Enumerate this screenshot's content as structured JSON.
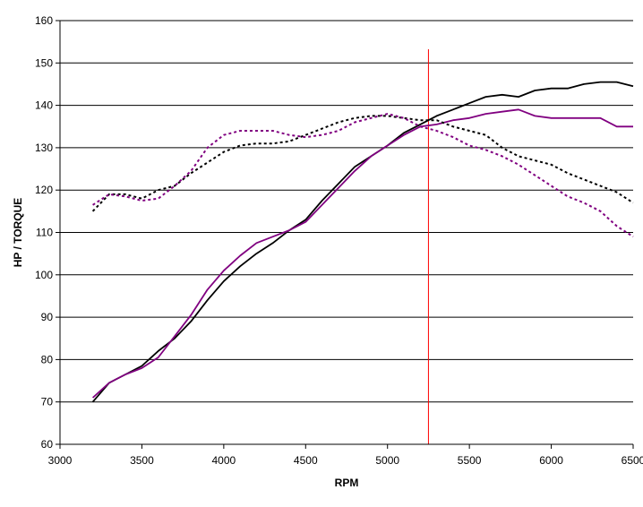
{
  "chart_data": {
    "type": "line",
    "xlabel": "RPM",
    "ylabel": "HP / TORQUE",
    "xlim": [
      3000,
      6500
    ],
    "ylim": [
      60,
      160
    ],
    "xticks": [
      3000,
      3500,
      4000,
      4500,
      5000,
      5500,
      6000,
      6500
    ],
    "yticks": [
      60,
      70,
      80,
      90,
      100,
      110,
      120,
      130,
      140,
      150,
      160
    ],
    "grid": "horizontal",
    "legend": "none",
    "vertical_marker": {
      "x": 5250,
      "color": "#ff0000"
    },
    "series": [
      {
        "color": "#000000",
        "dash": "solid",
        "points": [
          [
            3200,
            70
          ],
          [
            3300,
            74.5
          ],
          [
            3400,
            76.5
          ],
          [
            3500,
            78.5
          ],
          [
            3600,
            82
          ],
          [
            3700,
            85
          ],
          [
            3800,
            89
          ],
          [
            3900,
            94
          ],
          [
            4000,
            98.5
          ],
          [
            4100,
            102
          ],
          [
            4200,
            105
          ],
          [
            4300,
            107.5
          ],
          [
            4400,
            110.5
          ],
          [
            4500,
            113
          ],
          [
            4600,
            117.5
          ],
          [
            4700,
            121.5
          ],
          [
            4800,
            125.5
          ],
          [
            4900,
            128
          ],
          [
            5000,
            130.5
          ],
          [
            5100,
            133.5
          ],
          [
            5200,
            135.5
          ],
          [
            5300,
            137.5
          ],
          [
            5400,
            139
          ],
          [
            5500,
            140.5
          ],
          [
            5600,
            142
          ],
          [
            5700,
            142.5
          ],
          [
            5800,
            142
          ],
          [
            5900,
            143.5
          ],
          [
            6000,
            144
          ],
          [
            6100,
            144
          ],
          [
            6200,
            145
          ],
          [
            6300,
            145.5
          ],
          [
            6400,
            145.5
          ],
          [
            6500,
            144.5
          ]
        ]
      },
      {
        "color": "#800080",
        "dash": "solid",
        "points": [
          [
            3200,
            71
          ],
          [
            3300,
            74.5
          ],
          [
            3400,
            76.5
          ],
          [
            3500,
            78
          ],
          [
            3600,
            80.5
          ],
          [
            3700,
            85.5
          ],
          [
            3800,
            90.5
          ],
          [
            3900,
            96.5
          ],
          [
            4000,
            101
          ],
          [
            4100,
            104.5
          ],
          [
            4200,
            107.5
          ],
          [
            4300,
            109
          ],
          [
            4400,
            110.5
          ],
          [
            4500,
            112.5
          ],
          [
            4600,
            116.5
          ],
          [
            4700,
            120.5
          ],
          [
            4800,
            124.5
          ],
          [
            4900,
            128
          ],
          [
            5000,
            130.5
          ],
          [
            5100,
            133
          ],
          [
            5200,
            135
          ],
          [
            5300,
            135.5
          ],
          [
            5400,
            136.5
          ],
          [
            5500,
            137
          ],
          [
            5600,
            138
          ],
          [
            5700,
            138.5
          ],
          [
            5800,
            139
          ],
          [
            5900,
            137.5
          ],
          [
            6000,
            137
          ],
          [
            6100,
            137
          ],
          [
            6200,
            137
          ],
          [
            6300,
            137
          ],
          [
            6400,
            135
          ],
          [
            6500,
            135
          ]
        ]
      },
      {
        "color": "#000000",
        "dash": "dotted",
        "points": [
          [
            3200,
            115
          ],
          [
            3300,
            119
          ],
          [
            3400,
            119
          ],
          [
            3500,
            118
          ],
          [
            3600,
            120
          ],
          [
            3700,
            121
          ],
          [
            3800,
            124
          ],
          [
            3900,
            126.5
          ],
          [
            4000,
            129
          ],
          [
            4100,
            130.5
          ],
          [
            4200,
            131
          ],
          [
            4300,
            131
          ],
          [
            4400,
            131.5
          ],
          [
            4500,
            133
          ],
          [
            4600,
            134.5
          ],
          [
            4700,
            136
          ],
          [
            4800,
            137
          ],
          [
            4900,
            137.5
          ],
          [
            5000,
            137.5
          ],
          [
            5100,
            137
          ],
          [
            5200,
            136.5
          ],
          [
            5300,
            136.5
          ],
          [
            5400,
            135
          ],
          [
            5500,
            134
          ],
          [
            5600,
            133
          ],
          [
            5700,
            130
          ],
          [
            5800,
            128
          ],
          [
            5900,
            127
          ],
          [
            6000,
            126
          ],
          [
            6100,
            124
          ],
          [
            6200,
            122.5
          ],
          [
            6300,
            121
          ],
          [
            6400,
            119.5
          ],
          [
            6500,
            117
          ]
        ]
      },
      {
        "color": "#800080",
        "dash": "dotted",
        "points": [
          [
            3200,
            116.5
          ],
          [
            3300,
            119
          ],
          [
            3400,
            118.5
          ],
          [
            3500,
            117.5
          ],
          [
            3600,
            118
          ],
          [
            3700,
            121
          ],
          [
            3800,
            124.5
          ],
          [
            3900,
            130
          ],
          [
            4000,
            133
          ],
          [
            4100,
            134
          ],
          [
            4200,
            134
          ],
          [
            4300,
            134
          ],
          [
            4400,
            133
          ],
          [
            4500,
            132.5
          ],
          [
            4600,
            133
          ],
          [
            4700,
            134
          ],
          [
            4800,
            136
          ],
          [
            4900,
            137
          ],
          [
            5000,
            138
          ],
          [
            5100,
            137
          ],
          [
            5200,
            135
          ],
          [
            5300,
            134
          ],
          [
            5400,
            132.5
          ],
          [
            5500,
            130.5
          ],
          [
            5600,
            129.5
          ],
          [
            5700,
            128
          ],
          [
            5800,
            126
          ],
          [
            5900,
            123.5
          ],
          [
            6000,
            121
          ],
          [
            6100,
            118.5
          ],
          [
            6200,
            117
          ],
          [
            6300,
            115
          ],
          [
            6400,
            111.5
          ],
          [
            6500,
            109
          ]
        ]
      }
    ]
  }
}
